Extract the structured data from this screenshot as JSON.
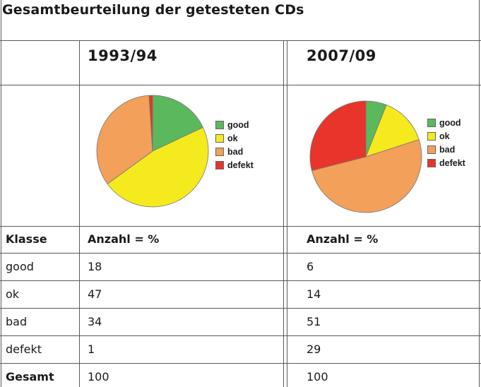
{
  "title": "Gesamtbeurteilung der getesteten CDs",
  "colors": {
    "good": "#5cb85c",
    "ok": "#f5ea1e",
    "bad": "#f2a05a",
    "defekt": "#e8342a"
  },
  "chart_data": [
    {
      "type": "pie",
      "title": "1993/94",
      "categories": [
        "good",
        "ok",
        "bad",
        "defekt"
      ],
      "values": [
        18,
        47,
        34,
        1
      ],
      "legend": "right"
    },
    {
      "type": "pie",
      "title": "2007/09",
      "categories": [
        "good",
        "ok",
        "bad",
        "defekt"
      ],
      "values": [
        6,
        14,
        51,
        29
      ],
      "legend": "right"
    }
  ],
  "table": {
    "headers": [
      "Klasse",
      "Anzahl = %",
      "Anzahl = %"
    ],
    "rows": [
      {
        "label": "good",
        "v1": "18",
        "v2": "6"
      },
      {
        "label": "ok",
        "v1": "47",
        "v2": "14"
      },
      {
        "label": "bad",
        "v1": "34",
        "v2": "51"
      },
      {
        "label": "defekt",
        "v1": "1",
        "v2": "29"
      }
    ],
    "total": {
      "label": "Gesamt",
      "v1": "100",
      "v2": "100"
    }
  }
}
